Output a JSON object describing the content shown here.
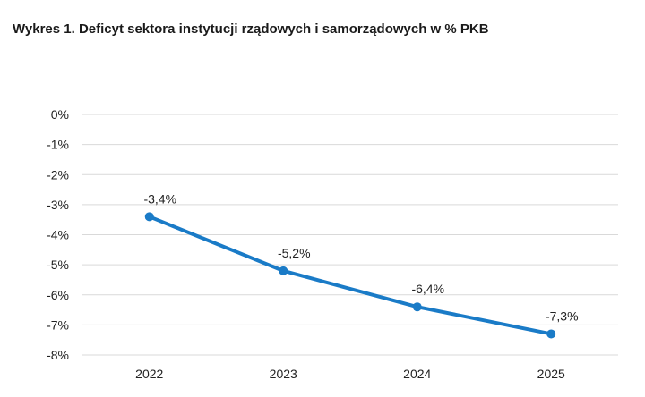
{
  "title": "Wykres 1.  Deficyt sektora instytucji rządowych i samorządowych w % PKB",
  "chart_data": {
    "type": "line",
    "title": "Wykres 1.  Deficyt sektora instytucji rządowych i samorządowych w % PKB",
    "x": [
      "2022",
      "2023",
      "2024",
      "2025"
    ],
    "series": [
      {
        "values": [
          -3.4,
          -5.2,
          -6.4,
          -7.3
        ],
        "labels": [
          "-3,4%",
          "-5,2%",
          "-6,4%",
          "-7,3%"
        ],
        "color": "#1a7bc7"
      }
    ],
    "y_ticks": [
      0,
      -1,
      -2,
      -3,
      -4,
      -5,
      -6,
      -7,
      -8
    ],
    "y_tick_labels": [
      "0%",
      "-1%",
      "-2%",
      "-3%",
      "-4%",
      "-5%",
      "-6%",
      "-7%",
      "-8%"
    ],
    "ylim": [
      -8,
      0
    ],
    "grid": true,
    "legend": "none",
    "gridline_color": "#d9d9d9"
  }
}
